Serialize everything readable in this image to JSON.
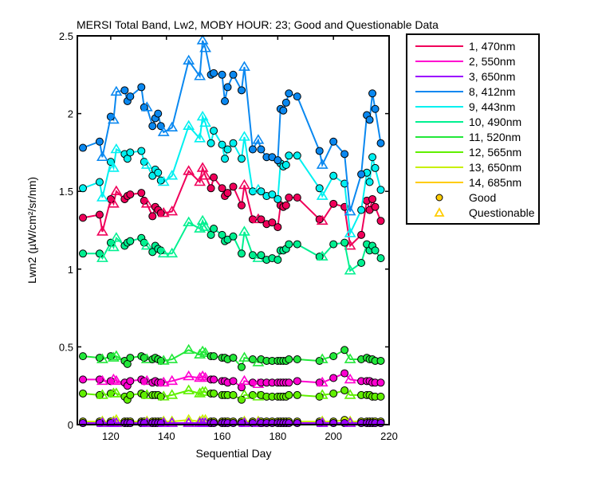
{
  "chart_data": {
    "type": "line",
    "title": "MERSI Total Band, Lw2, MOBY HOUR: 23;  Good and Questionable Data",
    "xlabel": "Sequential Day",
    "ylabel": "Lwn2 (µW/cm²/sr/nm)",
    "xlim": [
      108,
      220
    ],
    "ylim": [
      0,
      2.5
    ],
    "xticks": [
      120,
      140,
      160,
      180,
      200,
      220
    ],
    "yticks": [
      0,
      0.5,
      1,
      1.5,
      2,
      2.5
    ],
    "ytick_labels": [
      "0",
      "0.5",
      "1",
      "1.5",
      "2",
      "2.5"
    ],
    "grid": false,
    "legend_placement": "outside-right",
    "x": [
      110,
      116,
      117,
      120,
      121,
      122,
      125,
      126,
      127,
      131,
      132,
      133,
      135,
      136,
      137,
      138,
      139,
      142,
      148,
      152,
      153,
      154,
      156,
      157,
      160,
      161,
      162,
      164,
      167,
      168,
      171,
      173,
      174,
      176,
      178,
      180,
      181,
      182,
      183,
      184,
      187,
      195,
      196,
      200,
      204,
      206,
      210,
      212,
      213,
      214,
      215,
      217
    ],
    "quality": [
      "G",
      "G",
      "Q",
      "G",
      "Q",
      "Q",
      "G",
      "G",
      "G",
      "G",
      "G",
      "Q",
      "G",
      "G",
      "G",
      "G",
      "Q",
      "Q",
      "Q",
      "Q",
      "Q",
      "Q",
      "G",
      "G",
      "G",
      "G",
      "G",
      "G",
      "G",
      "Q",
      "G",
      "Q",
      "G",
      "G",
      "G",
      "G",
      "G",
      "G",
      "G",
      "G",
      "G",
      "G",
      "Q",
      "G",
      "G",
      "Q",
      "G",
      "G",
      "G",
      "G",
      "G",
      "G"
    ],
    "markers": {
      "good": {
        "label": "Good",
        "symbol": "circle",
        "color": "#ffcc00"
      },
      "questionable": {
        "label": "Questionable",
        "symbol": "triangle",
        "color": "#ffcc00"
      }
    },
    "series": [
      {
        "name": "1, 470nm",
        "color": "#f0005a",
        "values": [
          1.33,
          1.35,
          1.24,
          1.45,
          1.42,
          1.5,
          1.45,
          1.47,
          1.48,
          1.49,
          1.44,
          1.42,
          1.34,
          1.4,
          1.38,
          1.36,
          1.36,
          1.37,
          1.63,
          1.56,
          1.65,
          1.6,
          1.52,
          1.59,
          1.52,
          1.47,
          1.49,
          1.53,
          1.41,
          1.54,
          1.32,
          1.32,
          1.32,
          1.29,
          1.3,
          1.27,
          1.41,
          1.4,
          1.41,
          1.46,
          1.46,
          1.32,
          1.31,
          1.42,
          1.4,
          1.15,
          1.22,
          1.44,
          1.38,
          1.45,
          1.4,
          1.31
        ]
      },
      {
        "name": "2, 550nm",
        "color": "#ff00d0",
        "values": [
          0.29,
          0.29,
          0.28,
          0.28,
          0.29,
          0.28,
          0.27,
          0.25,
          0.28,
          0.29,
          0.28,
          0.28,
          0.27,
          0.28,
          0.27,
          0.27,
          0.27,
          0.28,
          0.31,
          0.3,
          0.31,
          0.3,
          0.29,
          0.29,
          0.28,
          0.28,
          0.27,
          0.28,
          0.24,
          0.28,
          0.27,
          0.26,
          0.27,
          0.27,
          0.27,
          0.27,
          0.27,
          0.27,
          0.27,
          0.27,
          0.28,
          0.27,
          0.27,
          0.3,
          0.33,
          0.29,
          0.28,
          0.28,
          0.28,
          0.27,
          0.27,
          0.27
        ]
      },
      {
        "name": "3, 650nm",
        "color": "#9a00ff",
        "values": [
          0.01,
          0.01,
          0.01,
          0.01,
          0.01,
          0.01,
          0.01,
          0.01,
          0.01,
          0.01,
          0.01,
          0.01,
          0.01,
          0.01,
          0.01,
          0.01,
          0.01,
          0.01,
          0.01,
          0.01,
          0.01,
          0.01,
          0.01,
          0.01,
          0.01,
          0.01,
          0.01,
          0.01,
          0.01,
          0.01,
          0.01,
          0.01,
          0.01,
          0.01,
          0.01,
          0.01,
          0.01,
          0.01,
          0.01,
          0.01,
          0.01,
          0.01,
          0.01,
          0.01,
          0.01,
          0.01,
          0.01,
          0.01,
          0.01,
          0.01,
          0.01,
          0.01
        ]
      },
      {
        "name": "8, 412nm",
        "color": "#0a88f0",
        "values": [
          1.78,
          1.82,
          1.72,
          1.98,
          1.96,
          2.14,
          2.15,
          2.08,
          2.11,
          2.17,
          2.04,
          2.04,
          1.92,
          1.97,
          2.0,
          1.92,
          1.88,
          1.91,
          2.34,
          2.24,
          2.47,
          2.42,
          2.25,
          2.26,
          2.25,
          2.08,
          2.17,
          2.25,
          2.15,
          2.3,
          1.77,
          1.83,
          1.77,
          1.72,
          1.72,
          1.7,
          2.03,
          2.02,
          2.07,
          2.13,
          2.11,
          1.76,
          1.67,
          1.82,
          1.74,
          1.37,
          1.61,
          1.99,
          1.96,
          2.13,
          2.03,
          1.81
        ]
      },
      {
        "name": "9, 443nm",
        "color": "#00f0f0",
        "values": [
          1.52,
          1.56,
          1.46,
          1.69,
          1.65,
          1.77,
          1.74,
          1.71,
          1.75,
          1.76,
          1.69,
          1.67,
          1.6,
          1.64,
          1.62,
          1.57,
          1.56,
          1.6,
          1.92,
          1.84,
          1.98,
          1.94,
          1.81,
          1.89,
          1.8,
          1.71,
          1.77,
          1.81,
          1.71,
          1.85,
          1.5,
          1.51,
          1.5,
          1.47,
          1.48,
          1.45,
          1.68,
          1.66,
          1.67,
          1.73,
          1.73,
          1.52,
          1.47,
          1.6,
          1.55,
          1.23,
          1.38,
          1.62,
          1.56,
          1.72,
          1.65,
          1.51
        ]
      },
      {
        "name": "10, 490nm",
        "color": "#00f090",
        "values": [
          1.1,
          1.1,
          1.07,
          1.17,
          1.14,
          1.2,
          1.15,
          1.17,
          1.18,
          1.2,
          1.17,
          1.15,
          1.11,
          1.15,
          1.13,
          1.12,
          1.1,
          1.1,
          1.3,
          1.26,
          1.31,
          1.27,
          1.22,
          1.26,
          1.22,
          1.18,
          1.19,
          1.21,
          1.1,
          1.24,
          1.09,
          1.07,
          1.09,
          1.06,
          1.07,
          1.06,
          1.12,
          1.12,
          1.13,
          1.16,
          1.16,
          1.08,
          1.08,
          1.16,
          1.17,
          0.99,
          1.04,
          1.16,
          1.12,
          1.15,
          1.12,
          1.07
        ]
      },
      {
        "name": "11, 520nm",
        "color": "#22e83a",
        "values": [
          0.44,
          0.43,
          0.42,
          0.44,
          0.43,
          0.44,
          0.41,
          0.39,
          0.43,
          0.44,
          0.43,
          0.42,
          0.42,
          0.43,
          0.42,
          0.41,
          0.41,
          0.42,
          0.48,
          0.45,
          0.47,
          0.46,
          0.44,
          0.44,
          0.43,
          0.43,
          0.42,
          0.43,
          0.37,
          0.43,
          0.42,
          0.4,
          0.42,
          0.41,
          0.41,
          0.41,
          0.41,
          0.41,
          0.41,
          0.42,
          0.42,
          0.41,
          0.42,
          0.44,
          0.48,
          0.42,
          0.42,
          0.43,
          0.42,
          0.42,
          0.41,
          0.41
        ]
      },
      {
        "name": "12, 565nm",
        "color": "#60f000",
        "values": [
          0.2,
          0.19,
          0.19,
          0.2,
          0.2,
          0.2,
          0.18,
          0.16,
          0.19,
          0.2,
          0.19,
          0.19,
          0.19,
          0.19,
          0.19,
          0.18,
          0.18,
          0.19,
          0.22,
          0.2,
          0.21,
          0.21,
          0.2,
          0.2,
          0.19,
          0.19,
          0.19,
          0.19,
          0.16,
          0.19,
          0.19,
          0.18,
          0.19,
          0.18,
          0.18,
          0.18,
          0.18,
          0.18,
          0.18,
          0.19,
          0.19,
          0.18,
          0.19,
          0.2,
          0.22,
          0.19,
          0.19,
          0.19,
          0.19,
          0.18,
          0.18,
          0.18
        ]
      },
      {
        "name": "13, 650nm",
        "color": "#c8f000",
        "values": [
          0.02,
          0.02,
          0.02,
          0.02,
          0.02,
          0.03,
          0.02,
          0.02,
          0.02,
          0.02,
          0.02,
          0.02,
          0.02,
          0.02,
          0.02,
          0.02,
          0.02,
          0.02,
          0.03,
          0.02,
          0.03,
          0.03,
          0.02,
          0.02,
          0.02,
          0.02,
          0.02,
          0.02,
          0.02,
          0.02,
          0.02,
          0.02,
          0.02,
          0.02,
          0.02,
          0.02,
          0.02,
          0.02,
          0.02,
          0.02,
          0.02,
          0.02,
          0.02,
          0.02,
          0.03,
          0.02,
          0.02,
          0.02,
          0.02,
          0.02,
          0.02,
          0.02
        ]
      },
      {
        "name": "14, 685nm",
        "color": "#ffcc00",
        "values": [
          0.01,
          0.01,
          0.01,
          0.01,
          0.01,
          0.01,
          0.01,
          0.01,
          0.01,
          0.01,
          0.01,
          0.01,
          0.01,
          0.01,
          0.01,
          0.01,
          0.01,
          0.01,
          0.01,
          0.01,
          0.01,
          0.01,
          0.01,
          0.01,
          0.01,
          0.01,
          0.01,
          0.01,
          0.01,
          0.01,
          0.01,
          0.01,
          0.01,
          0.01,
          0.01,
          0.01,
          0.01,
          0.01,
          0.01,
          0.01,
          0.01,
          0.01,
          0.01,
          0.01,
          0.01,
          0.01,
          0.01,
          0.01,
          0.01,
          0.01,
          0.01,
          0.01
        ]
      }
    ]
  }
}
